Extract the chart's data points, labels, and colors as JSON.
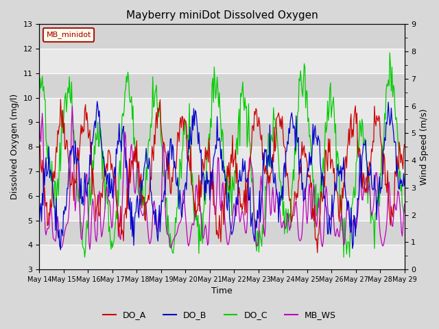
{
  "title": "Mayberry miniDot Dissolved Oxygen",
  "ylabel_left": "Dissolved Oxygen (mg/l)",
  "ylabel_right": "Wind Speed (m/s)",
  "xlabel": "Time",
  "ylim_left": [
    3.0,
    13.0
  ],
  "ylim_right": [
    0.0,
    9.0
  ],
  "yticks_left": [
    3.0,
    4.0,
    5.0,
    6.0,
    7.0,
    8.0,
    9.0,
    10.0,
    11.0,
    12.0,
    13.0
  ],
  "yticks_right": [
    0.0,
    1.0,
    2.0,
    3.0,
    4.0,
    5.0,
    6.0,
    7.0,
    8.0,
    9.0
  ],
  "colors": {
    "DO_A": "#cc0000",
    "DO_B": "#0000cc",
    "DO_C": "#00cc00",
    "MB_WS": "#bb00bb"
  },
  "legend_box_label": "MB_minidot",
  "legend_box_color": "#aa0000",
  "plot_bg_light": "#e8e8e8",
  "plot_bg_dark": "#d4d4d4",
  "n_points": 500,
  "xtick_labels": [
    "May 14",
    "May 15",
    "May 16",
    "May 17",
    "May 18",
    "May 19",
    "May 20",
    "May 21",
    "May 22",
    "May 23",
    "May 24",
    "May 25",
    "May 26",
    "May 27",
    "May 28",
    "May 29"
  ],
  "line_width": 0.9,
  "figsize": [
    6.4,
    4.8
  ],
  "dpi": 100
}
